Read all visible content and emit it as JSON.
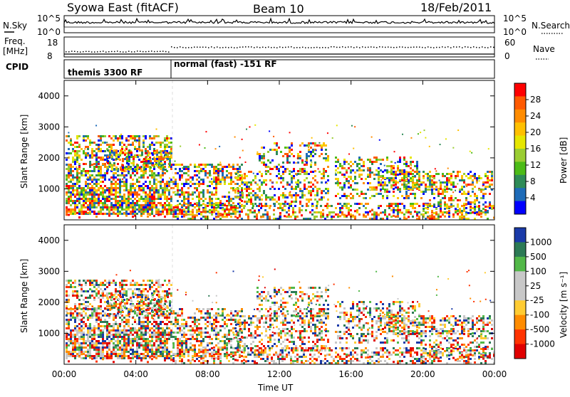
{
  "header": {
    "station": "Syowa East (fitACF)",
    "beam": "Beam 10",
    "date": "18/Feb/2011"
  },
  "panels": {
    "nsky_label": "N.Sky",
    "nsearch_label": "N.Search",
    "nsky_ticks": [
      "10^5",
      "10^0"
    ],
    "nsearch_ticks": [
      "10^5",
      "10^0"
    ],
    "freq_label_1": "Freq.",
    "freq_label_2": "[MHz]",
    "freq_ticks": [
      "18",
      "8"
    ],
    "nave_label": "Nave",
    "nave_ticks": [
      "60",
      "0"
    ],
    "cpid_label": "CPID",
    "cpid_segments": [
      "themis 3300 RF",
      "normal (fast) -151 RF"
    ]
  },
  "chart_data": [
    {
      "type": "heatmap",
      "ylabel": "Slant Range [km]",
      "y_ticks": [
        "4000",
        "3000",
        "2000",
        "1000"
      ],
      "colorbar": {
        "label": "Power [dB]",
        "ticks": [
          "28",
          "24",
          "20",
          "16",
          "12",
          "8",
          "4"
        ],
        "colors": [
          "#ff0000",
          "#ff5a00",
          "#ff8c00",
          "#ffc000",
          "#e6e600",
          "#9acd32",
          "#4cbb17",
          "#2e8b57",
          "#1e6bb8",
          "#0000ff"
        ]
      }
    },
    {
      "type": "heatmap",
      "ylabel": "Slant Range [km]",
      "y_ticks": [
        "4000",
        "3000",
        "2000",
        "1000"
      ],
      "colorbar": {
        "label": "Velocity [m s⁻¹]",
        "ticks": [
          "1000",
          "500",
          "100",
          "25",
          "-25",
          "-100",
          "-500",
          "-1000"
        ],
        "colors": [
          "#1a3aa8",
          "#2c7a55",
          "#52b848",
          "#c8c8c8",
          "#c8c8c8",
          "#ffcc33",
          "#ff8c00",
          "#ff3300",
          "#e00000"
        ]
      }
    }
  ],
  "x_axis": {
    "label": "Time UT",
    "ticks": [
      "00:00",
      "04:00",
      "08:00",
      "12:00",
      "16:00",
      "20:00",
      "00:00"
    ]
  }
}
